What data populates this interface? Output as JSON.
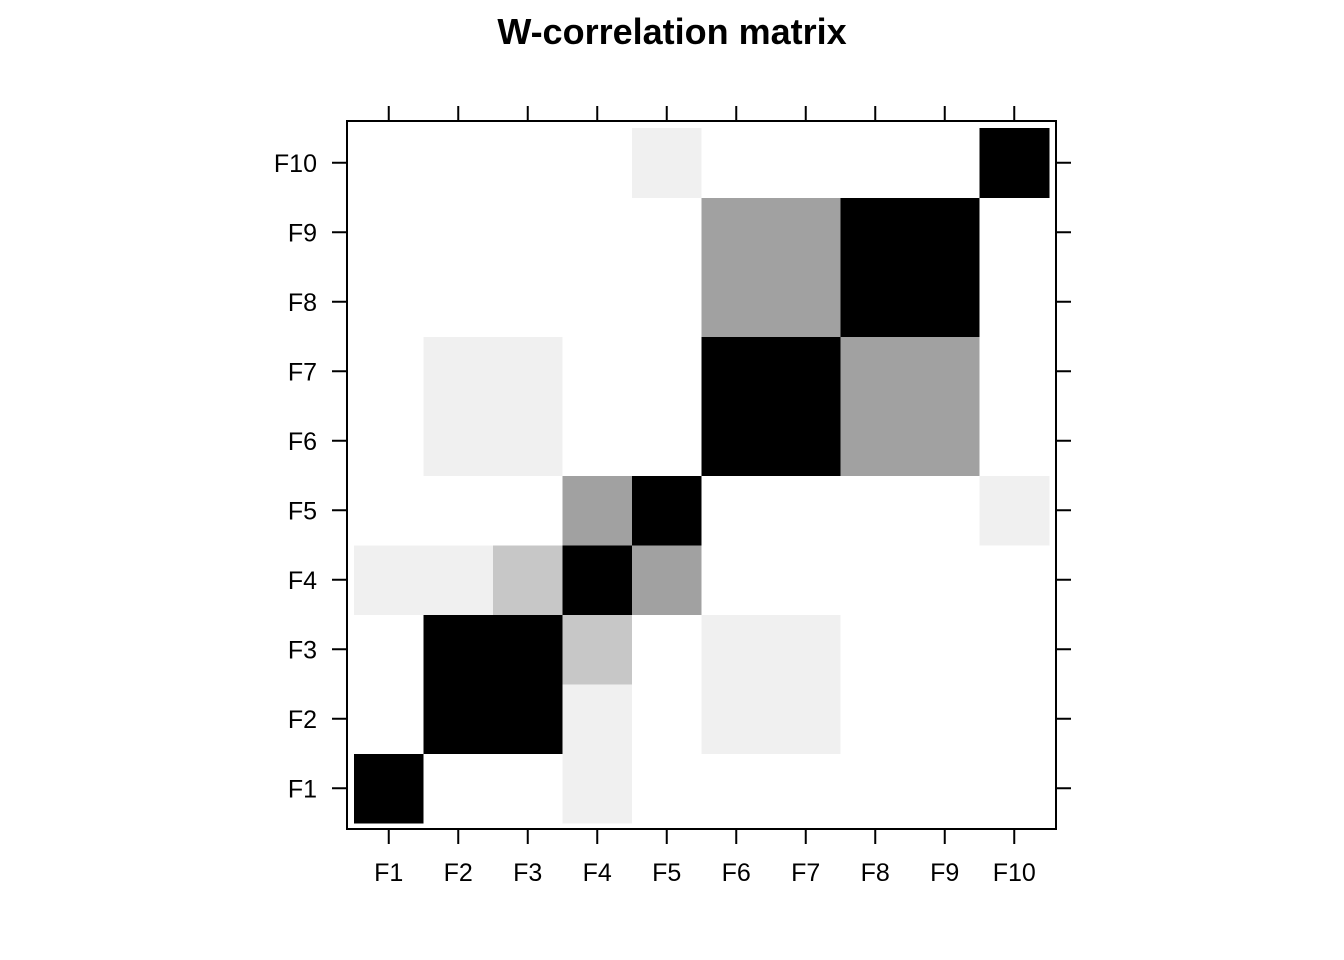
{
  "chart_data": {
    "type": "heatmap",
    "title": "W-correlation matrix",
    "xlabel": "",
    "ylabel": "",
    "x_categories": [
      "F1",
      "F2",
      "F3",
      "F4",
      "F5",
      "F6",
      "F7",
      "F8",
      "F9",
      "F10"
    ],
    "y_categories": [
      "F1",
      "F2",
      "F3",
      "F4",
      "F5",
      "F6",
      "F7",
      "F8",
      "F9",
      "F10"
    ],
    "value_range": [
      0,
      1
    ],
    "color_scale": {
      "low": "#ffffff",
      "high": "#000000"
    },
    "legend": "none",
    "grid": false,
    "values": [
      [
        1.0,
        0.0,
        0.0,
        0.06,
        0.0,
        0.0,
        0.0,
        0.0,
        0.0,
        0.0
      ],
      [
        0.0,
        1.0,
        1.0,
        0.06,
        0.0,
        0.06,
        0.06,
        0.0,
        0.0,
        0.0
      ],
      [
        0.0,
        1.0,
        1.0,
        0.22,
        0.0,
        0.06,
        0.06,
        0.0,
        0.0,
        0.0
      ],
      [
        0.06,
        0.06,
        0.22,
        1.0,
        0.37,
        0.0,
        0.0,
        0.0,
        0.0,
        0.0
      ],
      [
        0.0,
        0.0,
        0.0,
        0.37,
        1.0,
        0.0,
        0.0,
        0.0,
        0.0,
        0.06
      ],
      [
        0.0,
        0.06,
        0.06,
        0.0,
        0.0,
        1.0,
        1.0,
        0.37,
        0.37,
        0.0
      ],
      [
        0.0,
        0.06,
        0.06,
        0.0,
        0.0,
        1.0,
        1.0,
        0.37,
        0.37,
        0.0
      ],
      [
        0.0,
        0.0,
        0.0,
        0.0,
        0.0,
        0.37,
        0.37,
        1.0,
        1.0,
        0.0
      ],
      [
        0.0,
        0.0,
        0.0,
        0.0,
        0.0,
        0.37,
        0.37,
        1.0,
        1.0,
        0.0
      ],
      [
        0.0,
        0.0,
        0.0,
        0.0,
        0.06,
        0.0,
        0.0,
        0.0,
        0.0,
        1.0
      ]
    ]
  }
}
